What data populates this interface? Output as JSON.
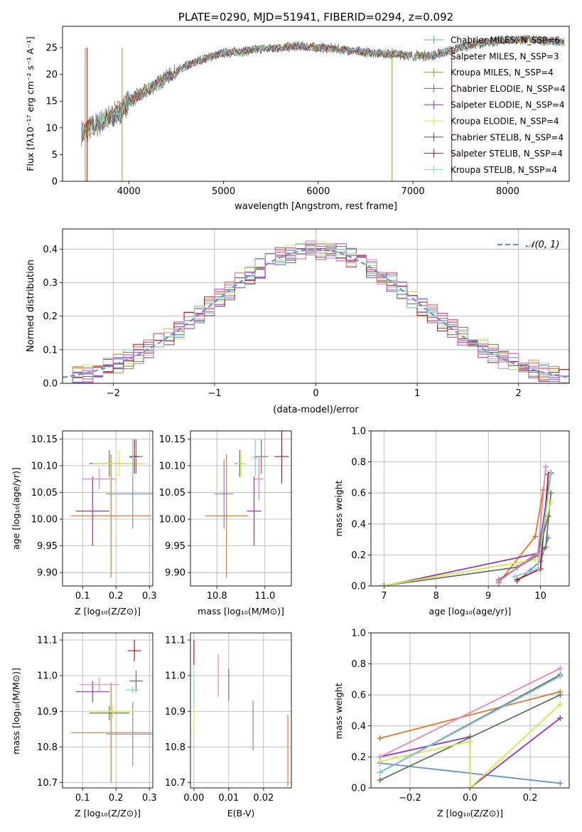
{
  "colors": {
    "blue": "#6a8fd8",
    "orange": "#e07a2a",
    "purple": "#9a33b0",
    "darkgreen": "#5a7a5a",
    "magenta": "#cc33cc",
    "lime": "#d6e84a",
    "gray": "#707070",
    "red": "#b01818",
    "cyan": "#80d0e0",
    "pink": "#e882c0",
    "olive": "#9a9a20",
    "brown": "#8a4a1a",
    "dgray": "#505050",
    "teal": "#50b0b0",
    "grid": "#b0b0b0"
  },
  "chart_data": [
    {
      "id": "spectrum",
      "type": "line",
      "title": "PLATE=0290, MJD=51941, FIBERID=0294, z=0.092",
      "xlabel": "wavelength [Angstrom, rest frame]",
      "ylabel": "Flux [fλ10⁻¹⁷ erg cm⁻² s⁻¹ A⁻¹]",
      "xlim": [
        3300,
        8650
      ],
      "ylim": [
        0,
        29
      ],
      "xticks": [
        4000,
        5000,
        6000,
        7000,
        8000
      ],
      "yticks": [
        0,
        5,
        10,
        15,
        20,
        25
      ],
      "legend_position": "top-right",
      "series": [
        {
          "name": "Chabrier MILES, N_SSP=6",
          "color": "teal"
        },
        {
          "name": "Salpeter MILES, N_SSP=3",
          "color": "blue"
        },
        {
          "name": "Kroupa MILES, N_SSP=4",
          "color": "olive"
        },
        {
          "name": "Chabrier ELODIE, N_SSP=4",
          "color": "darkgreen"
        },
        {
          "name": "Salpeter ELODIE, N_SSP=4",
          "color": "purple"
        },
        {
          "name": "Kroupa ELODIE, N_SSP=4",
          "color": "lime"
        },
        {
          "name": "Chabrier STELIB, N_SSP=4",
          "color": "dgray"
        },
        {
          "name": "Salpeter STELIB, N_SSP=4",
          "color": "red"
        },
        {
          "name": "Kroupa STELIB, N_SSP=4",
          "color": "cyan"
        }
      ],
      "continuum": [
        [
          3500,
          9
        ],
        [
          3600,
          10
        ],
        [
          3700,
          11
        ],
        [
          3800,
          12
        ],
        [
          3900,
          13
        ],
        [
          4000,
          15
        ],
        [
          4200,
          17
        ],
        [
          4400,
          19.5
        ],
        [
          4600,
          21.5
        ],
        [
          4800,
          23
        ],
        [
          5000,
          24
        ],
        [
          5200,
          24.3
        ],
        [
          5400,
          24.8
        ],
        [
          5600,
          25
        ],
        [
          5800,
          25.3
        ],
        [
          6000,
          25
        ],
        [
          6200,
          24.8
        ],
        [
          6400,
          24.3
        ],
        [
          6600,
          24
        ],
        [
          6800,
          23.8
        ],
        [
          7000,
          23.5
        ],
        [
          7200,
          23.5
        ],
        [
          7400,
          24.5
        ],
        [
          7600,
          25.5
        ],
        [
          7800,
          26
        ],
        [
          8000,
          26.5
        ],
        [
          8200,
          26.5
        ],
        [
          8400,
          26.3
        ],
        [
          8600,
          26
        ]
      ]
    },
    {
      "id": "residuals",
      "type": "histogram",
      "xlabel": "(data-model)/error",
      "ylabel": "Normed distribution",
      "xlim": [
        -2.5,
        2.5
      ],
      "ylim": [
        0,
        0.46
      ],
      "xticks": [
        -2,
        -1,
        0,
        1,
        2
      ],
      "yticks": [
        0.0,
        0.1,
        0.2,
        0.3,
        0.4
      ],
      "legend": "𝒩(0, 1)",
      "legend_position": "top-right",
      "gaussian": {
        "mean": 0,
        "sigma": 1,
        "color": "blue"
      },
      "series_colors": [
        "blue",
        "orange",
        "purple",
        "darkgreen",
        "magenta",
        "lime",
        "gray",
        "red",
        "cyan",
        "pink"
      ]
    },
    {
      "id": "age-vs-Z",
      "type": "errorbar",
      "xlabel": "Z [log₁₀(Z/Z⊙)]",
      "ylabel": "age [log₁₀(age/yr)]",
      "xlim": [
        0.04,
        0.31
      ],
      "ylim": [
        9.875,
        10.165
      ],
      "xticks": [
        0.1,
        0.2,
        0.3
      ],
      "yticks": [
        9.9,
        9.95,
        10.0,
        10.05,
        10.1,
        10.15
      ],
      "points": [
        {
          "x": 0.25,
          "y": 10.047,
          "xerr": 0.08,
          "yerr": 0.065,
          "color": "blue"
        },
        {
          "x": 0.185,
          "y": 10.006,
          "xerr": 0.12,
          "yerr": 0.115,
          "color": "orange"
        },
        {
          "x": 0.13,
          "y": 10.015,
          "xerr": 0.05,
          "yerr": 0.065,
          "color": "purple"
        },
        {
          "x": 0.18,
          "y": 10.104,
          "xerr": 0.06,
          "yerr": 0.025,
          "color": "darkgreen"
        },
        {
          "x": 0.21,
          "y": 10.104,
          "xerr": 0.08,
          "yerr": 0.025,
          "color": "lime"
        },
        {
          "x": 0.26,
          "y": 10.117,
          "xerr": 0.02,
          "yerr": 0.032,
          "color": "gray"
        },
        {
          "x": 0.255,
          "y": 10.117,
          "xerr": 0.015,
          "yerr": 0.032,
          "color": "red"
        },
        {
          "x": 0.25,
          "y": 10.115,
          "xerr": 0.01,
          "yerr": 0.035,
          "color": "cyan"
        },
        {
          "x": 0.15,
          "y": 10.075,
          "xerr": 0.05,
          "yerr": 0.02,
          "color": "pink"
        }
      ]
    },
    {
      "id": "age-vs-mass",
      "type": "errorbar",
      "xlabel": "mass [log₁₀(M/M⊙)]",
      "xlim": [
        10.69,
        11.11
      ],
      "ylim": [
        9.875,
        10.165
      ],
      "xticks": [
        10.8,
        11.0
      ],
      "yticks": [
        9.9,
        9.95,
        10.0,
        10.05,
        10.1,
        10.15
      ],
      "points": [
        {
          "x": 10.83,
          "y": 10.047,
          "xerr": 0.04,
          "yerr": 0.065,
          "color": "blue"
        },
        {
          "x": 10.84,
          "y": 10.006,
          "xerr": 0.09,
          "yerr": 0.115,
          "color": "orange"
        },
        {
          "x": 10.955,
          "y": 10.015,
          "xerr": 0.03,
          "yerr": 0.065,
          "color": "purple"
        },
        {
          "x": 10.895,
          "y": 10.104,
          "xerr": 0.02,
          "yerr": 0.025,
          "color": "darkgreen"
        },
        {
          "x": 10.9,
          "y": 10.104,
          "xerr": 0.02,
          "yerr": 0.025,
          "color": "lime"
        },
        {
          "x": 10.985,
          "y": 10.117,
          "xerr": 0.03,
          "yerr": 0.032,
          "color": "gray"
        },
        {
          "x": 11.07,
          "y": 10.117,
          "xerr": 0.03,
          "yerr": 0.05,
          "color": "red"
        },
        {
          "x": 10.96,
          "y": 10.115,
          "xerr": 0.01,
          "yerr": 0.035,
          "color": "cyan"
        },
        {
          "x": 10.975,
          "y": 10.075,
          "xerr": 0.02,
          "yerr": 0.04,
          "color": "pink"
        }
      ]
    },
    {
      "id": "weight-vs-age",
      "type": "line",
      "xlabel": "age [log₁₀(age/yr)]",
      "ylabel": "mass weight",
      "xlim": [
        6.75,
        10.55
      ],
      "ylim": [
        0,
        1
      ],
      "xticks": [
        7,
        8,
        9,
        10
      ],
      "yticks": [
        0.0,
        0.2,
        0.4,
        0.6,
        0.8,
        1.0
      ],
      "series": [
        {
          "color": "blue",
          "x": [
            9.55,
            9.8,
            10.0,
            10.15
          ],
          "y": [
            0.03,
            0.1,
            0.16,
            0.31
          ]
        },
        {
          "color": "orange",
          "x": [
            9.2,
            9.9,
            10.05
          ],
          "y": [
            0.02,
            0.32,
            0.62
          ]
        },
        {
          "color": "purple",
          "x": [
            7.0,
            9.95,
            10.15
          ],
          "y": [
            0.0,
            0.21,
            0.45
          ]
        },
        {
          "color": "darkgreen",
          "x": [
            6.95,
            9.55,
            10.1,
            10.2
          ],
          "y": [
            0.0,
            0.12,
            0.25,
            0.6
          ]
        },
        {
          "color": "lime",
          "x": [
            6.95,
            9.9,
            10.2
          ],
          "y": [
            0.0,
            0.17,
            0.54
          ]
        },
        {
          "color": "gray",
          "x": [
            9.2,
            9.95,
            10.2
          ],
          "y": [
            0.04,
            0.2,
            0.73
          ]
        },
        {
          "color": "red",
          "x": [
            9.55,
            10.0,
            10.15
          ],
          "y": [
            0.04,
            0.11,
            0.72
          ]
        },
        {
          "color": "cyan",
          "x": [
            9.5,
            9.95,
            10.2
          ],
          "y": [
            0.06,
            0.11,
            0.72
          ]
        },
        {
          "color": "pink",
          "x": [
            9.2,
            9.95,
            10.1
          ],
          "y": [
            0.03,
            0.21,
            0.77
          ]
        }
      ]
    },
    {
      "id": "mass-vs-Z",
      "type": "errorbar",
      "xlabel": "Z [log₁₀(Z/Z⊙)]",
      "ylabel": "mass [log₁₀(M/M⊙)]",
      "xlim": [
        0.04,
        0.31
      ],
      "ylim": [
        10.685,
        11.12
      ],
      "xticks": [
        0.1,
        0.2,
        0.3
      ],
      "yticks": [
        10.7,
        10.8,
        10.9,
        11.0,
        11.1
      ],
      "points": [
        {
          "x": 0.25,
          "y": 10.836,
          "xerr": 0.08,
          "yerr": 0.09,
          "color": "blue"
        },
        {
          "x": 0.185,
          "y": 10.84,
          "xerr": 0.12,
          "yerr": 0.14,
          "color": "orange"
        },
        {
          "x": 0.13,
          "y": 10.955,
          "xerr": 0.05,
          "yerr": 0.03,
          "color": "purple"
        },
        {
          "x": 0.18,
          "y": 10.895,
          "xerr": 0.06,
          "yerr": 0.02,
          "color": "darkgreen"
        },
        {
          "x": 0.19,
          "y": 10.9,
          "xerr": 0.07,
          "yerr": 0.02,
          "color": "lime"
        },
        {
          "x": 0.26,
          "y": 10.985,
          "xerr": 0.02,
          "yerr": 0.03,
          "color": "gray"
        },
        {
          "x": 0.255,
          "y": 11.07,
          "xerr": 0.02,
          "yerr": 0.03,
          "color": "red"
        },
        {
          "x": 0.25,
          "y": 10.96,
          "xerr": 0.02,
          "yerr": 0.01,
          "color": "cyan"
        },
        {
          "x": 0.15,
          "y": 10.975,
          "xerr": 0.06,
          "yerr": 0.02,
          "color": "pink"
        }
      ]
    },
    {
      "id": "mass-vs-ebv",
      "type": "errorbar",
      "xlabel": "E(B-V)",
      "xlim": [
        -0.001,
        0.028
      ],
      "ylim": [
        10.685,
        11.12
      ],
      "xticks": [
        0.0,
        0.01,
        0.02
      ],
      "yticks": [
        10.7,
        10.8,
        10.9,
        11.0,
        11.1
      ],
      "points": [
        {
          "x": 0.017,
          "y": 10.86,
          "xerr": 0,
          "yerr": 0.07,
          "color": "blue"
        },
        {
          "x": 0.027,
          "y": 10.79,
          "xerr": 0,
          "yerr": 0.1,
          "color": "orange"
        },
        {
          "x": 0.0,
          "y": 10.88,
          "xerr": 0,
          "yerr": 0.04,
          "color": "lime"
        },
        {
          "x": 0.01,
          "y": 10.975,
          "xerr": 0,
          "yerr": 0.045,
          "color": "gray"
        },
        {
          "x": 0.0,
          "y": 11.065,
          "xerr": 0,
          "yerr": 0.035,
          "color": "red"
        },
        {
          "x": 0.0,
          "y": 10.96,
          "xerr": 0,
          "yerr": 0.05,
          "color": "cyan"
        },
        {
          "x": 0.007,
          "y": 11.0,
          "xerr": 0,
          "yerr": 0.06,
          "color": "pink"
        }
      ]
    },
    {
      "id": "weight-vs-Z",
      "type": "line",
      "xlabel": "Z [log₁₀(Z/Z⊙)]",
      "ylabel": "mass weight",
      "xlim": [
        -0.33,
        0.33
      ],
      "ylim": [
        0,
        1
      ],
      "xticks": [
        -0.2,
        0.0,
        0.2
      ],
      "yticks": [
        0.0,
        0.2,
        0.4,
        0.6,
        0.8,
        1.0
      ],
      "series": [
        {
          "color": "blue",
          "x": [
            -0.3,
            0.3
          ],
          "y": [
            0.16,
            0.03
          ]
        },
        {
          "color": "orange",
          "x": [
            -0.3,
            0.3
          ],
          "y": [
            0.32,
            0.62
          ]
        },
        {
          "color": "purple",
          "x": [
            -0.3,
            0.0,
            0.0,
            0.3
          ],
          "y": [
            0.2,
            0.33,
            0.0,
            0.45
          ]
        },
        {
          "color": "darkgreen",
          "x": [
            -0.3,
            0.3
          ],
          "y": [
            0.05,
            0.6
          ]
        },
        {
          "color": "lime",
          "x": [
            -0.3,
            0.0,
            0.0,
            0.3
          ],
          "y": [
            0.17,
            0.3,
            0.0,
            0.54
          ]
        },
        {
          "color": "gray",
          "x": [
            -0.3,
            0.3
          ],
          "y": [
            0.1,
            0.73
          ]
        },
        {
          "color": "red",
          "x": [
            -0.3,
            0.3
          ],
          "y": [
            0.1,
            0.72
          ]
        },
        {
          "color": "cyan",
          "x": [
            -0.3,
            0.3
          ],
          "y": [
            0.1,
            0.72
          ]
        },
        {
          "color": "pink",
          "x": [
            -0.3,
            0.3
          ],
          "y": [
            0.2,
            0.77
          ]
        }
      ]
    }
  ]
}
